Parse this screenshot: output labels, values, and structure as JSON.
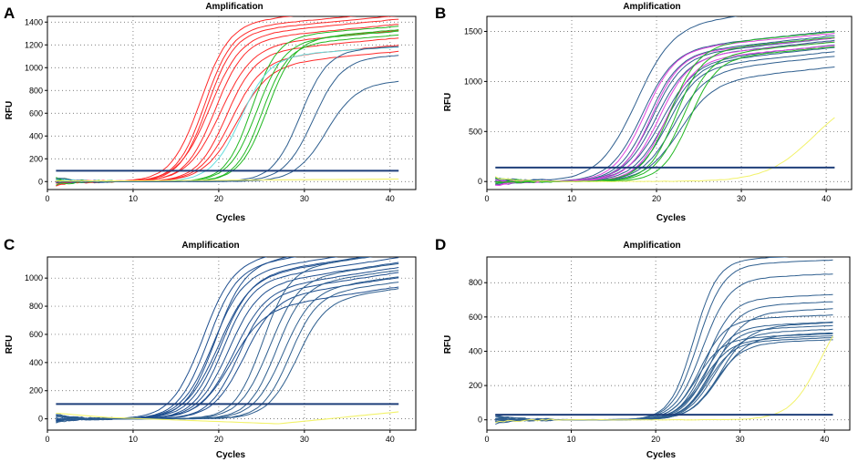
{
  "chart_data": [
    {
      "type": "line",
      "panel_label": "A",
      "title": "Amplification",
      "xlabel": "Cycles",
      "ylabel": "RFU",
      "xlim": [
        0,
        43
      ],
      "ylim": [
        -70,
        1450
      ],
      "xticks": [
        0,
        10,
        20,
        30,
        40
      ],
      "yticks": [
        0,
        200,
        400,
        600,
        800,
        1000,
        1200,
        1400
      ],
      "grid": true,
      "threshold": {
        "value": 95,
        "color": "#1f3f7a"
      },
      "cycles": [
        1,
        41
      ],
      "curve_groups": [
        {
          "color": "#ff2a2a",
          "mids": [
            17.8,
            18.3,
            18.9,
            19.5,
            20.1,
            20.8,
            21.4,
            22.0,
            18.6
          ],
          "plateaus": [
            1380,
            1330,
            1270,
            1230,
            1180,
            1120,
            1060,
            1010,
            1300
          ],
          "slopes": [
            1.7,
            1.6,
            1.8,
            1.7,
            1.9,
            1.7,
            1.8,
            1.9,
            1.6
          ],
          "drift": 7
        },
        {
          "color": "#22b822",
          "mids": [
            23.8,
            24.4,
            25.0,
            25.6
          ],
          "plateaus": [
            1260,
            1220,
            1190,
            1240
          ],
          "slopes": [
            1.5,
            1.6,
            1.5,
            1.6
          ],
          "drift": 6
        },
        {
          "color": "#66dddd",
          "mids": [
            22.5
          ],
          "plateaus": [
            1090
          ],
          "slopes": [
            1.7
          ],
          "drift": 5
        },
        {
          "color": "#2f5f8f",
          "mids": [
            29.5,
            31.0,
            32.5
          ],
          "plateaus": [
            1150,
            1080,
            860
          ],
          "slopes": [
            1.6,
            1.7,
            1.8
          ],
          "drift": 3
        },
        {
          "color": "#f2f26a",
          "mids": [],
          "plateaus": [],
          "slopes": [],
          "drift": 0,
          "flat": [
            5,
            5,
            15,
            22
          ]
        }
      ]
    },
    {
      "type": "line",
      "panel_label": "B",
      "title": "Amplification",
      "xlabel": "Cycles",
      "ylabel": "RFU",
      "xlim": [
        0,
        43
      ],
      "ylim": [
        -80,
        1650
      ],
      "xticks": [
        0,
        10,
        20,
        30,
        40
      ],
      "yticks": [
        0,
        500,
        1000,
        1500
      ],
      "grid": true,
      "threshold": {
        "value": 140,
        "color": "#1f3f7a"
      },
      "cycles": [
        1,
        41
      ],
      "curve_groups": [
        {
          "color": "#2f5f8f",
          "mids": [
            17.5,
            18.2,
            19.0,
            19.8,
            20.5,
            21.2,
            21.9,
            22.6,
            19.4,
            20.9
          ],
          "plateaus": [
            1550,
            1300,
            1260,
            1220,
            1180,
            1120,
            1080,
            980,
            1240,
            1160
          ],
          "slopes": [
            2.2,
            1.9,
            1.8,
            1.9,
            2.0,
            1.8,
            1.9,
            2.0,
            1.8,
            1.9
          ],
          "drift": 9
        },
        {
          "color": "#dd44dd",
          "mids": [
            18.5,
            19.3,
            20.2,
            21.0
          ],
          "plateaus": [
            1300,
            1260,
            1230,
            1200
          ],
          "slopes": [
            1.8,
            1.7,
            1.8,
            1.7
          ],
          "drift": 8
        },
        {
          "color": "#22b822",
          "mids": [
            21.5,
            22.2,
            23.0,
            23.8
          ],
          "plateaus": [
            1340,
            1290,
            1250,
            1210
          ],
          "slopes": [
            1.7,
            1.6,
            1.7,
            1.6
          ],
          "drift": 8
        },
        {
          "color": "#f2f26a",
          "mids": [
            38.5
          ],
          "plateaus": [
            900
          ],
          "slopes": [
            2.8
          ],
          "drift": 0
        }
      ]
    },
    {
      "type": "line",
      "panel_label": "C",
      "title": "Amplification",
      "xlabel": "Cycles",
      "ylabel": "RFU",
      "xlim": [
        0,
        43
      ],
      "ylim": [
        -80,
        1150
      ],
      "xticks": [
        0,
        10,
        20,
        30,
        40
      ],
      "yticks": [
        0,
        200,
        400,
        600,
        800,
        1000
      ],
      "grid": true,
      "threshold": {
        "value": 105,
        "color": "#1f3f7a"
      },
      "cycles": [
        1,
        41
      ],
      "curve_groups": [
        {
          "color": "#1f4f8f",
          "mids": [
            18.0,
            18.6,
            19.2,
            19.8,
            20.4,
            21.0,
            21.6,
            22.2,
            22.8,
            19.5,
            20.1,
            21.3
          ],
          "plateaus": [
            1100,
            1060,
            1020,
            990,
            960,
            930,
            900,
            870,
            840,
            1080,
            1000,
            760
          ],
          "slopes": [
            1.8,
            1.7,
            1.8,
            1.9,
            1.7,
            1.8,
            1.9,
            1.7,
            1.8,
            1.7,
            1.8,
            1.9
          ],
          "drift": 9
        },
        {
          "color": "#2f5f8f",
          "mids": [
            25.0,
            25.8,
            26.6,
            27.4,
            28.2,
            29.0
          ],
          "plateaus": [
            1050,
            980,
            940,
            900,
            870,
            830
          ],
          "slopes": [
            1.6,
            1.7,
            1.6,
            1.7,
            1.6,
            1.7
          ],
          "drift": 8
        },
        {
          "color": "#f2f26a",
          "mids": [],
          "plateaus": [],
          "slopes": [],
          "drift": 0,
          "flat": [
            40,
            10,
            -35,
            50
          ]
        }
      ]
    },
    {
      "type": "line",
      "panel_label": "D",
      "title": "Amplification",
      "xlabel": "Cycles",
      "ylabel": "RFU",
      "xlim": [
        0,
        43
      ],
      "ylim": [
        -60,
        950
      ],
      "xticks": [
        0,
        10,
        20,
        30,
        40
      ],
      "yticks": [
        0,
        200,
        400,
        600,
        800
      ],
      "grid": true,
      "threshold": {
        "value": 30,
        "color": "#1f3f7a"
      },
      "cycles": [
        1,
        41
      ],
      "curve_groups": [
        {
          "color": "#2f5f8f",
          "mids": [
            24.5,
            25.0,
            25.5,
            26.0,
            26.5,
            27.0,
            25.2,
            25.8,
            26.3,
            26.8,
            27.4,
            24.8,
            25.6,
            26.2,
            27.0,
            27.6
          ],
          "plateaus": [
            930,
            900,
            820,
            700,
            660,
            620,
            580,
            540,
            520,
            500,
            480,
            470,
            460,
            450,
            440,
            540
          ],
          "slopes": [
            1.4,
            1.5,
            1.6,
            1.5,
            1.6,
            1.7,
            1.5,
            1.6,
            1.5,
            1.6,
            1.7,
            1.5,
            1.6,
            1.5,
            1.6,
            1.7
          ],
          "drift": 2
        },
        {
          "color": "#f2f26a",
          "mids": [
            39.5
          ],
          "plateaus": [
            700
          ],
          "slopes": [
            1.8
          ],
          "drift": 0
        }
      ]
    }
  ]
}
